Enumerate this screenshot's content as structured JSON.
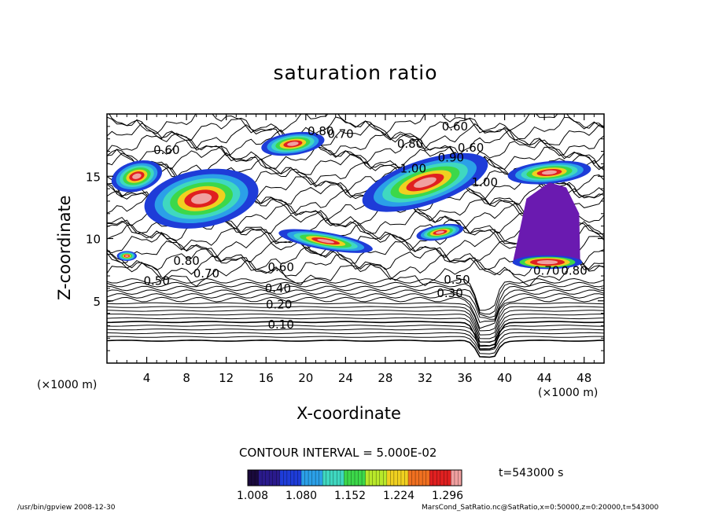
{
  "chart_data": {
    "type": "contour",
    "title": "saturation ratio",
    "xlabel": "X-coordinate",
    "ylabel": "Z-coordinate",
    "x_unit": "(×1000 m)",
    "xlim": [
      0,
      50
    ],
    "ylim": [
      0,
      20
    ],
    "x_ticks": [
      4,
      8,
      12,
      16,
      20,
      24,
      28,
      32,
      36,
      40,
      44,
      48
    ],
    "y_ticks": [
      5,
      10,
      15
    ],
    "contour_interval_text": "CONTOUR INTERVAL = 5.000E-02",
    "colorbar": {
      "ticks": [
        "1.008",
        "1.080",
        "1.152",
        "1.224",
        "1.296"
      ],
      "colors": [
        "#1a0a3c",
        "#2a1a8c",
        "#1e3cd8",
        "#2ba0e8",
        "#3fd8c0",
        "#3cd84a",
        "#b8e82a",
        "#f0d020",
        "#f07020",
        "#e02020",
        "#f0a0a0"
      ]
    },
    "contour_labels": [
      {
        "text": "0.60",
        "x": 35.0,
        "y": 19.0
      },
      {
        "text": "0.80",
        "x": 21.5,
        "y": 18.6
      },
      {
        "text": "0.70",
        "x": 23.5,
        "y": 18.4
      },
      {
        "text": "0.60",
        "x": 6.0,
        "y": 17.1
      },
      {
        "text": "0.80",
        "x": 30.5,
        "y": 17.6
      },
      {
        "text": "0.60",
        "x": 36.6,
        "y": 17.3
      },
      {
        "text": "0.90",
        "x": 34.6,
        "y": 16.5
      },
      {
        "text": "1.00",
        "x": 30.8,
        "y": 15.6
      },
      {
        "text": "1.00",
        "x": 38.0,
        "y": 14.5
      },
      {
        "text": "0.80",
        "x": 8.0,
        "y": 8.2
      },
      {
        "text": "0.60",
        "x": 17.5,
        "y": 7.7
      },
      {
        "text": "0.70",
        "x": 10.0,
        "y": 7.2
      },
      {
        "text": "0.50",
        "x": 5.0,
        "y": 6.6
      },
      {
        "text": "0.40",
        "x": 17.2,
        "y": 6.0
      },
      {
        "text": "0.50",
        "x": 35.2,
        "y": 6.7
      },
      {
        "text": "0.30",
        "x": 34.5,
        "y": 5.6
      },
      {
        "text": "0.70",
        "x": 44.2,
        "y": 7.4
      },
      {
        "text": "0.80",
        "x": 47.0,
        "y": 7.4
      },
      {
        "text": "0.20",
        "x": 17.3,
        "y": 4.7
      },
      {
        "text": "0.10",
        "x": 17.5,
        "y": 3.1
      }
    ],
    "time_label": "t=543000 s"
  },
  "footer": {
    "left": "/usr/bin/gpview  2008-12-30",
    "right": "MarsCond_SatRatio.nc@SatRatio,x=0:50000,z=0:20000,t=543000"
  },
  "colors": {
    "axis": "#000000",
    "background": "#ffffff",
    "dry_region": "#6a1ab0"
  }
}
